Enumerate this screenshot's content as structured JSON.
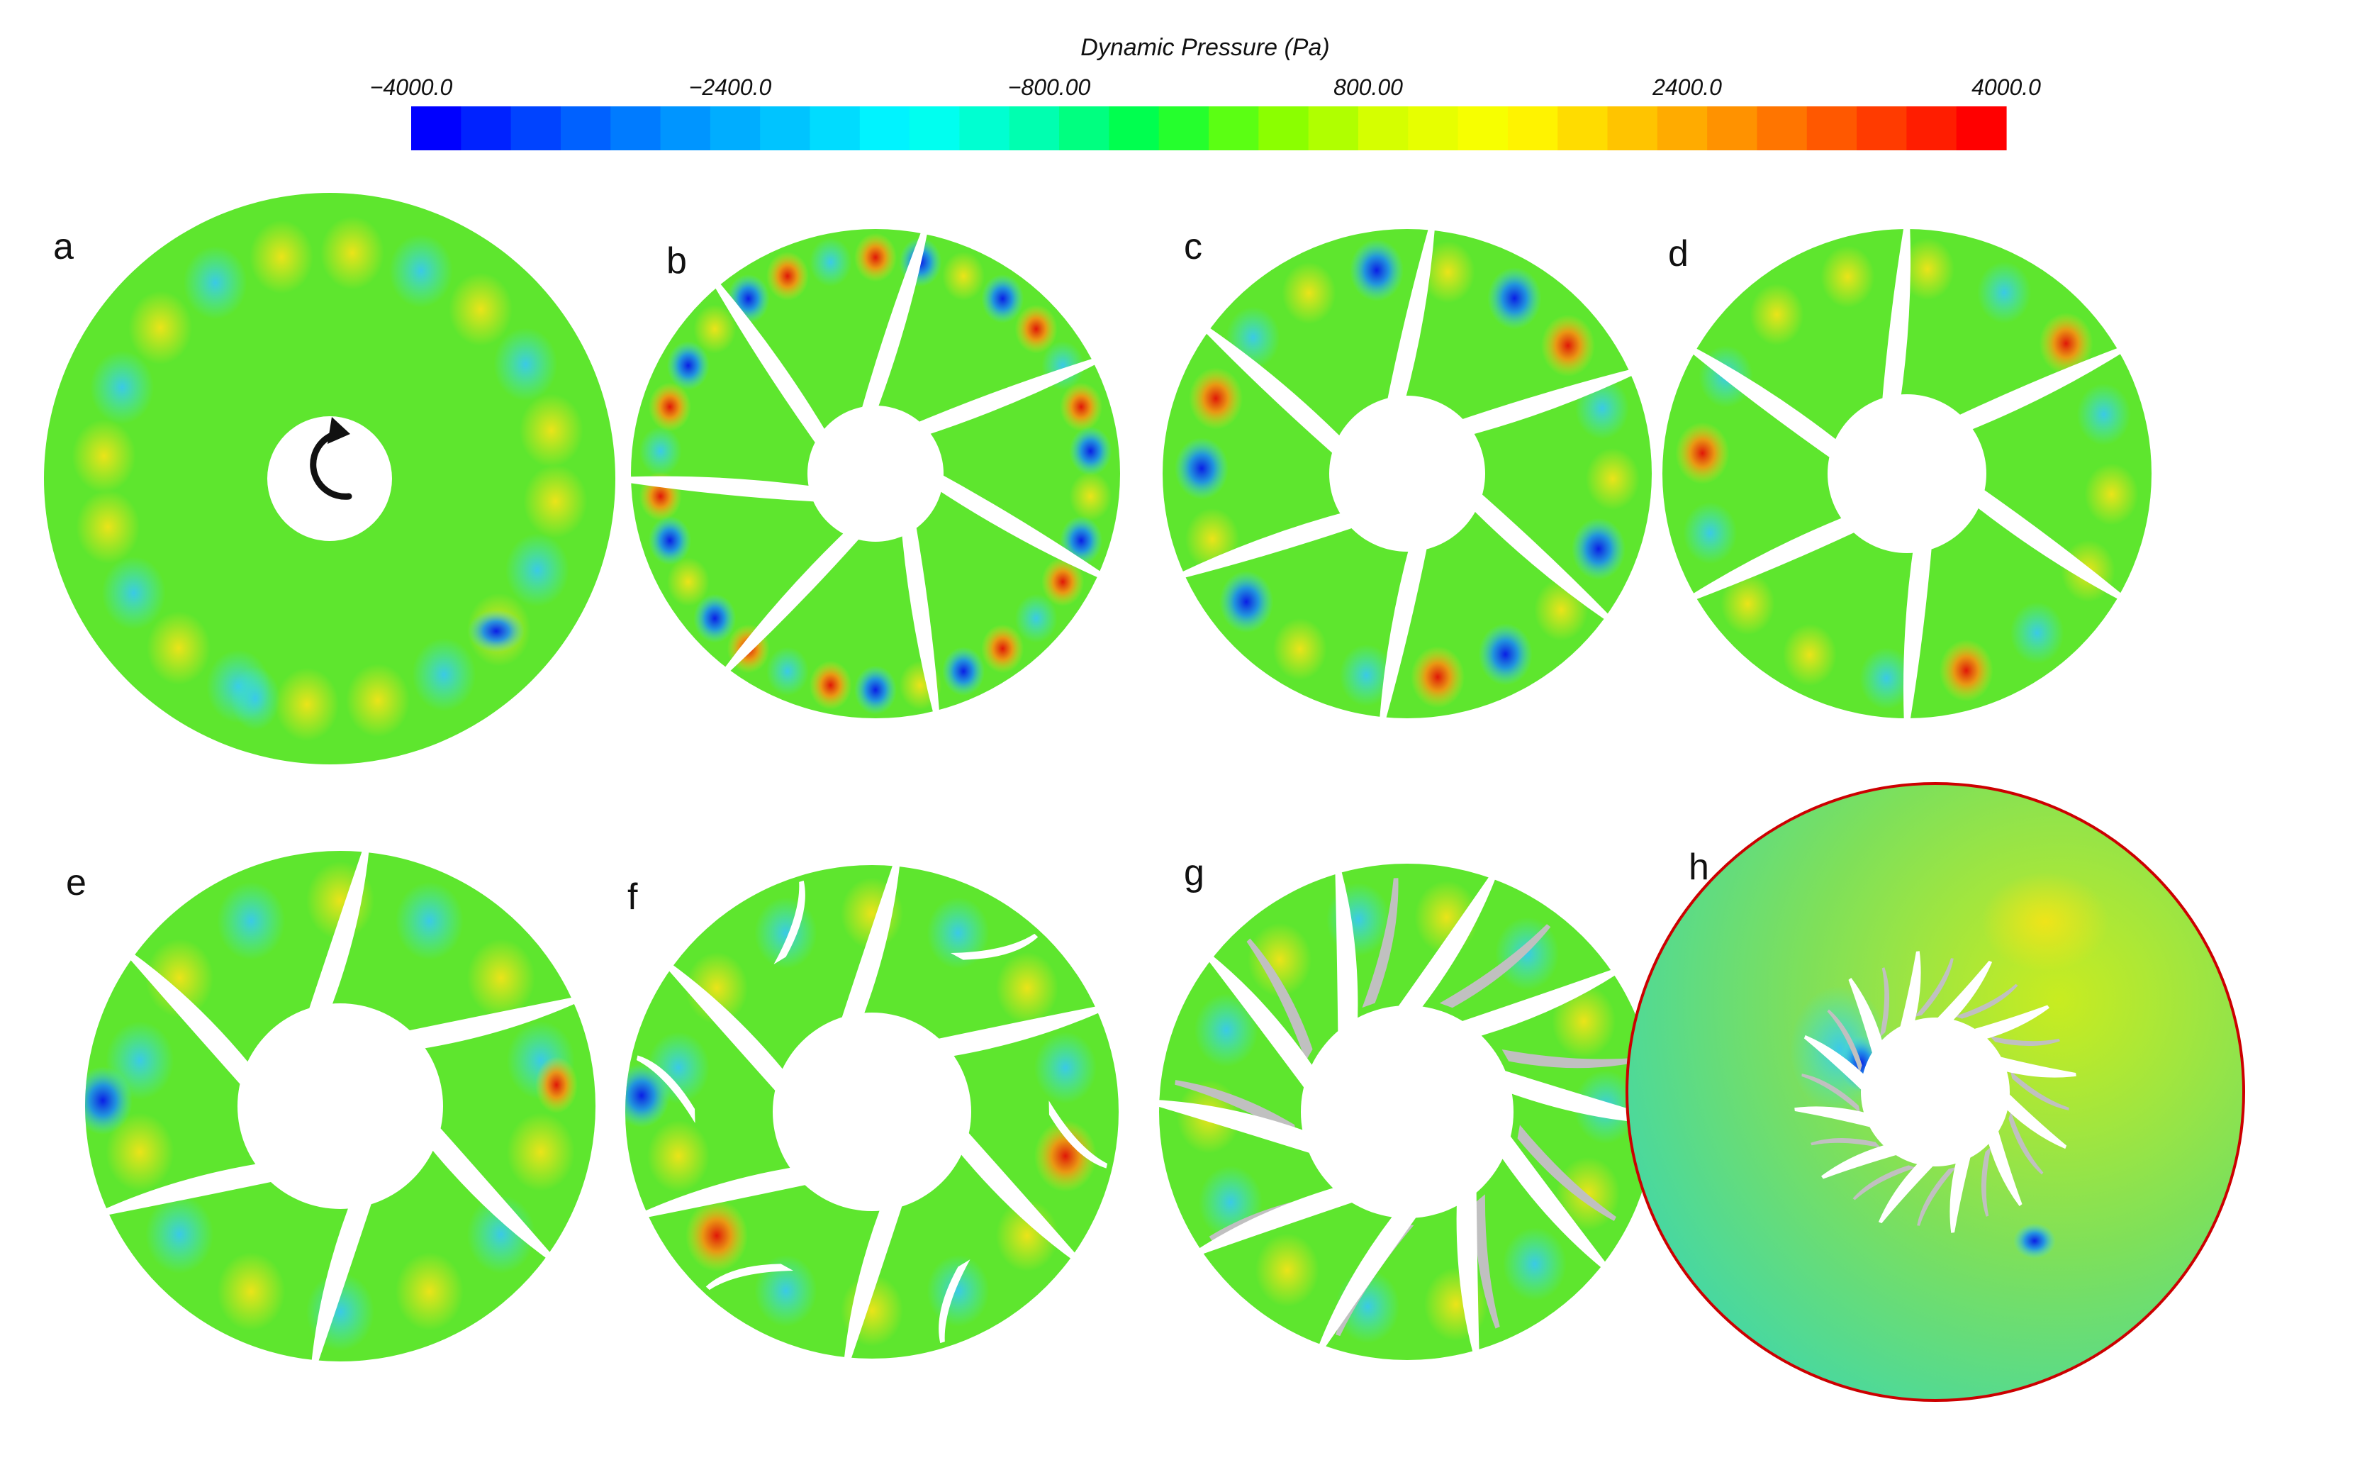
{
  "colorbar": {
    "title": "Dynamic Pressure (Pa)",
    "tick_labels": [
      "−4000.0",
      "−2400.0",
      "−800.00",
      "800.00",
      "2400.0",
      "4000.0"
    ],
    "min": -4000,
    "max": 4000,
    "steps": 32,
    "colors": [
      "#0000ff",
      "#0050ff",
      "#0090ff",
      "#00c8ff",
      "#00ffff",
      "#00ffb4",
      "#00ff40",
      "#80ff00",
      "#d8ff00",
      "#ffff00",
      "#ffc800",
      "#ff8c00",
      "#ff4600",
      "#ff0000"
    ]
  },
  "colors": {
    "field_base": "#5ee62e",
    "blade": "#ffffff",
    "inserted_vane": "#c0c0c0",
    "casing_outline": "#cc0000",
    "low": "#0a20e0",
    "mid_low": "#30c8f0",
    "high": "#f0e020",
    "peak": "#e02010"
  },
  "panels": [
    {
      "letter": "a",
      "rotation_icon": "rotation-arrow-icon"
    },
    {
      "letter": "b"
    },
    {
      "letter": "c"
    },
    {
      "letter": "d"
    },
    {
      "letter": "e"
    },
    {
      "letter": "f"
    },
    {
      "letter": "g"
    },
    {
      "letter": "h"
    }
  ]
}
